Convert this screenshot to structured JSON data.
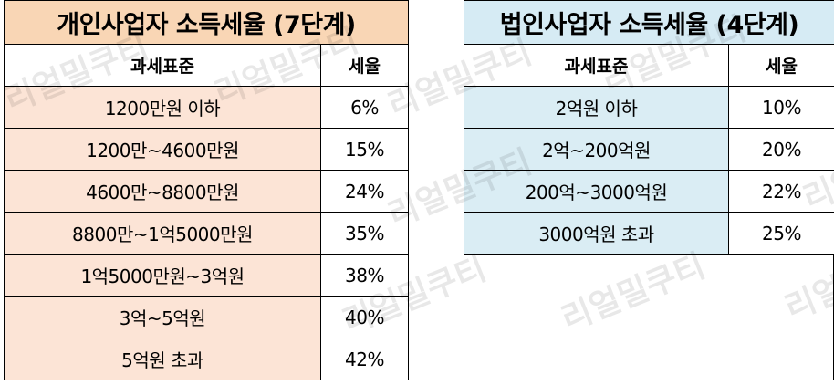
{
  "individual": {
    "title": "개인사업자 소득세율 (7단계)",
    "headers": {
      "standard": "과세표준",
      "rate": "세율"
    },
    "rows": [
      {
        "standard": "1200만원 이하",
        "rate": "6%"
      },
      {
        "standard": "1200만~4600만원",
        "rate": "15%"
      },
      {
        "standard": "4600만~8800만원",
        "rate": "24%"
      },
      {
        "standard": "8800만~1억5000만원",
        "rate": "35%"
      },
      {
        "standard": "1억5000만원~3억원",
        "rate": "38%"
      },
      {
        "standard": "3억~5억원",
        "rate": "40%"
      },
      {
        "standard": "5억원 초과",
        "rate": "42%"
      }
    ]
  },
  "corporate": {
    "title": "법인사업자 소득세율 (4단계)",
    "headers": {
      "standard": "과세표준",
      "rate": "세율"
    },
    "rows": [
      {
        "standard": "2억원 이하",
        "rate": "10%"
      },
      {
        "standard": "2억~200억원",
        "rate": "20%"
      },
      {
        "standard": "200억~3000억원",
        "rate": "22%"
      },
      {
        "standard": "3000억원 초과",
        "rate": "25%"
      }
    ]
  },
  "watermark": "리얼밀쿠티",
  "colors": {
    "individual_title_bg": "#f9d6b5",
    "individual_cell_bg": "#fce4d6",
    "corporate_title_bg": "#d6ebf4",
    "corporate_cell_bg": "#daedf4"
  }
}
